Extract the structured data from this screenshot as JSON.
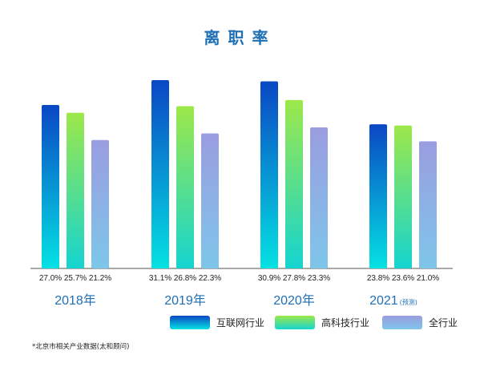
{
  "chart_data": {
    "type": "bar",
    "title": "离职率",
    "categories": [
      "2018年",
      "2019年",
      "2020年",
      "2021"
    ],
    "category_notes": [
      "",
      "",
      "",
      "(预测)"
    ],
    "series": [
      {
        "name": "互联网行业",
        "values": [
          27.0,
          31.1,
          30.9,
          23.8
        ],
        "labels": [
          "27.0%",
          "31.1%",
          "30.9%",
          "23.8%"
        ]
      },
      {
        "name": "高科技行业",
        "values": [
          25.7,
          26.8,
          27.8,
          23.6
        ],
        "labels": [
          "25.7%",
          "26.8%",
          "27.8%",
          "23.6%"
        ]
      },
      {
        "name": "全行业",
        "values": [
          21.2,
          22.3,
          23.3,
          21.0
        ],
        "labels": [
          "21.2%",
          "22.3%",
          "23.3%",
          "21.0%"
        ]
      }
    ],
    "ylim": [
      0,
      31.1
    ],
    "grid": false,
    "legend_position": "bottom-right",
    "source_note": "*北京市相关产业数据(太和顾问)"
  },
  "colors": {
    "title": "#1f6fb5",
    "category_text": "#1f6fb5",
    "baseline": "#555555",
    "series_gradients": [
      [
        "#0a47c4",
        "#05e2e3"
      ],
      [
        "#9de84a",
        "#14d4d0"
      ],
      [
        "#9a9de0",
        "#7ec6ea"
      ]
    ]
  }
}
